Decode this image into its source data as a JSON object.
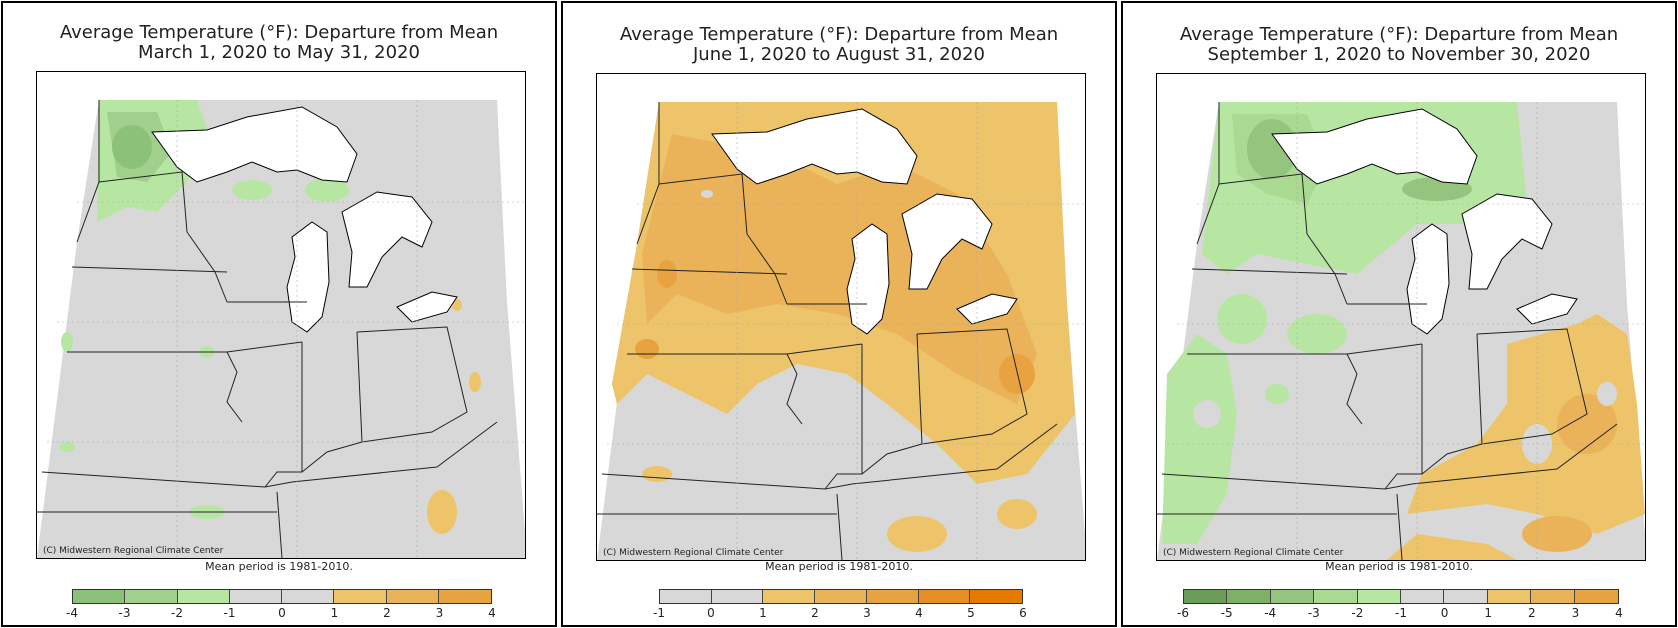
{
  "panels": [
    {
      "title_line1": "Average Temperature (°F): Departure from Mean",
      "title_line2": "March 1, 2020 to May 31, 2020",
      "credit": "(C) Midwestern Regional Climate Center",
      "mean_period": "Mean period is 1981-2010.",
      "legend": {
        "colors": [
          "#8cc17a",
          "#a0d08c",
          "#b7e6a3",
          "#d8d8d8",
          "#d8d8d8",
          "#edc46a",
          "#eab35a",
          "#e8a240"
        ],
        "ticks": [
          "-4",
          "-3",
          "-2",
          "-1",
          "0",
          "1",
          "2",
          "3",
          "4"
        ]
      }
    },
    {
      "title_line1": "Average Temperature (°F): Departure from Mean",
      "title_line2": "June 1, 2020 to August 31, 2020",
      "credit": "(C) Midwestern Regional Climate Center",
      "mean_period": "Mean period is 1981-2010.",
      "legend": {
        "colors": [
          "#d8d8d8",
          "#d8d8d8",
          "#edc46a",
          "#eab35a",
          "#e8a240",
          "#e68d24",
          "#e67a00"
        ],
        "ticks": [
          "-1",
          "0",
          "1",
          "2",
          "3",
          "4",
          "5",
          "6"
        ]
      }
    },
    {
      "title_line1": "Average Temperature (°F): Departure from Mean",
      "title_line2": "September 1, 2020 to November 30, 2020",
      "credit": "(C) Midwestern Regional Climate Center",
      "mean_period": "Mean period is 1981-2010.",
      "legend": {
        "colors": [
          "#6b9d56",
          "#7fb068",
          "#95c47f",
          "#aad992",
          "#b7e6a3",
          "#d8d8d8",
          "#d8d8d8",
          "#edc46a",
          "#eab35a",
          "#e8a240"
        ],
        "ticks": [
          "-6",
          "-5",
          "-4",
          "-3",
          "-2",
          "-1",
          "0",
          "1",
          "2",
          "3",
          "4"
        ]
      }
    }
  ]
}
